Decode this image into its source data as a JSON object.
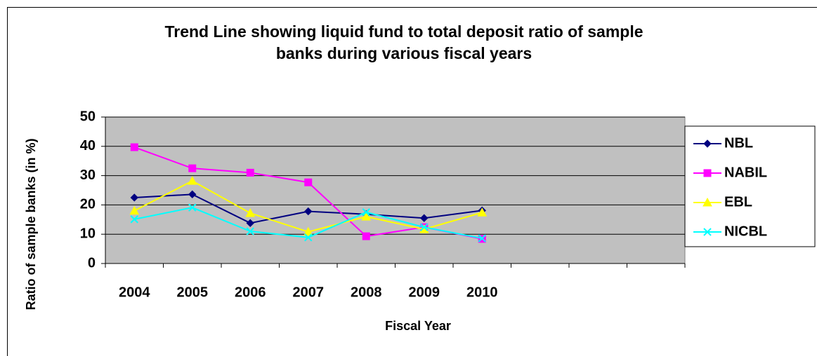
{
  "chart_data": {
    "type": "line",
    "title": "Trend Line showing liquid fund to total deposit ratio of sample banks during various fiscal years",
    "title_lines": [
      "Trend Line showing liquid fund to total deposit ratio of sample",
      "banks during various fiscal years"
    ],
    "x_label": "Fiscal Year",
    "y_label": "Ratio of sample banks (in %)",
    "categories": [
      "2004",
      "2005",
      "2006",
      "2007",
      "2008",
      "2009",
      "2010",
      null,
      null,
      null
    ],
    "series": [
      {
        "name": "NBL",
        "color": "#000080",
        "marker": "diamond",
        "values": [
          22.5,
          23.6,
          13.8,
          17.8,
          16.8,
          15.5,
          18.1,
          null,
          null,
          null
        ]
      },
      {
        "name": "NABIL",
        "color": "#ff00ff",
        "marker": "square",
        "values": [
          39.7,
          32.5,
          31,
          27.7,
          9.3,
          12.4,
          8.4,
          null,
          null,
          null
        ]
      },
      {
        "name": "EBL",
        "color": "#ffff00",
        "marker": "triangle",
        "values": [
          18,
          28.2,
          17.2,
          10.8,
          16,
          11.7,
          17.4,
          null,
          null,
          null
        ]
      },
      {
        "name": "NICBL",
        "color": "#00ffff",
        "marker": "x",
        "values": [
          15.1,
          19.1,
          11,
          8.9,
          17.5,
          12.4,
          8.6,
          null,
          null,
          null
        ]
      }
    ],
    "ylim": [
      0,
      50
    ],
    "yticks": [
      0,
      10,
      20,
      30,
      40,
      50
    ],
    "grid": true,
    "legend": "right",
    "plot_color": "#c0c0c0"
  }
}
